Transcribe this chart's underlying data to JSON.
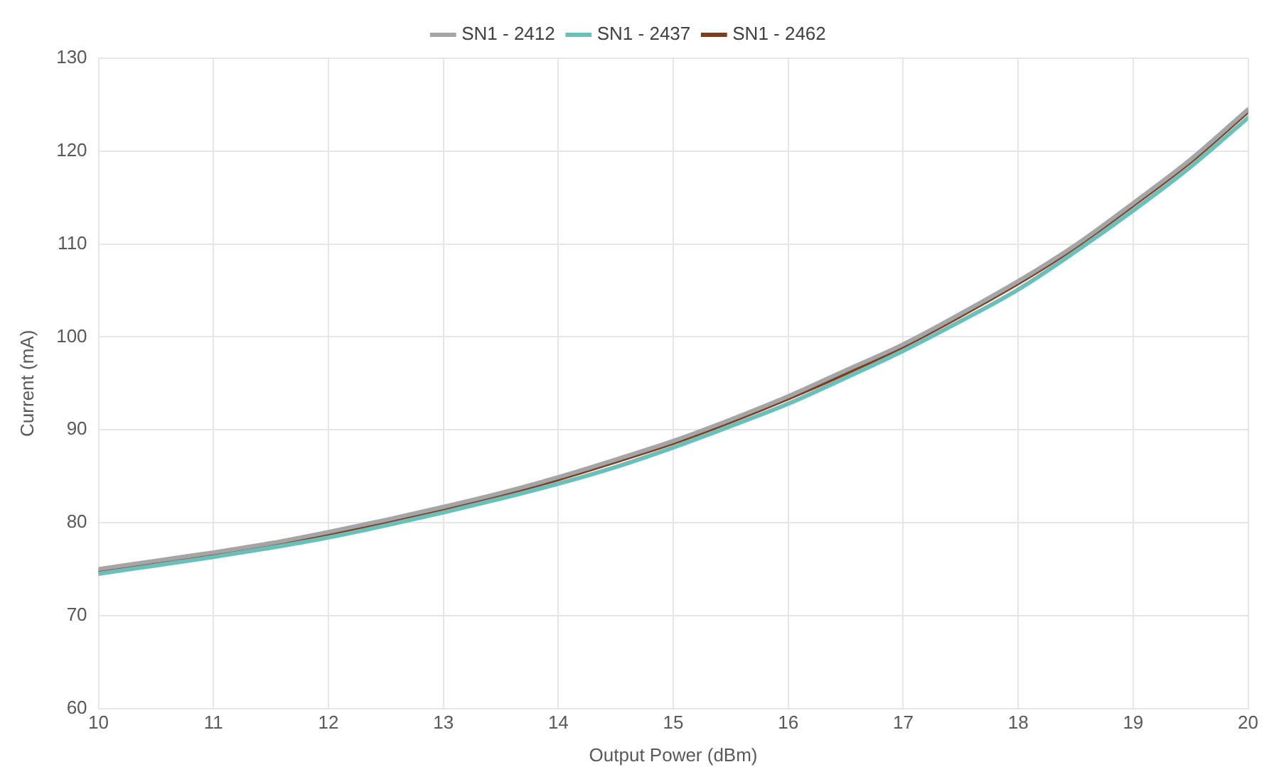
{
  "chart_data": {
    "type": "line",
    "xlabel": "Output Power (dBm)",
    "ylabel": "Current (mA)",
    "x": [
      10,
      10.5,
      11,
      11.5,
      12,
      12.5,
      13,
      13.5,
      14,
      14.5,
      15,
      15.5,
      16,
      16.5,
      17,
      17.5,
      18,
      18.5,
      19,
      19.5,
      20
    ],
    "series": [
      {
        "name": "SN1 - 2412",
        "color": "#a5a5a5",
        "values": [
          75.0,
          75.9,
          76.8,
          77.8,
          79.0,
          80.3,
          81.7,
          83.2,
          84.9,
          86.8,
          88.8,
          91.1,
          93.6,
          96.4,
          99.2,
          102.5,
          106.0,
          109.9,
          114.4,
          119.1,
          124.5
        ]
      },
      {
        "name": "SN1 - 2437",
        "color": "#6bbfba",
        "values": [
          74.5,
          75.4,
          76.3,
          77.3,
          78.4,
          79.7,
          81.1,
          82.6,
          84.2,
          86.0,
          88.1,
          90.4,
          92.8,
          95.6,
          98.5,
          101.7,
          105.1,
          109.2,
          113.6,
          118.3,
          123.6
        ]
      },
      {
        "name": "SN1 - 2462",
        "color": "#7b3f1d",
        "values": [
          74.8,
          75.7,
          76.6,
          77.6,
          78.8,
          80.1,
          81.5,
          83.0,
          84.7,
          86.6,
          88.6,
          90.9,
          93.4,
          96.1,
          99.0,
          102.3,
          105.8,
          109.7,
          114.2,
          118.9,
          124.3
        ]
      }
    ],
    "xlim": [
      10,
      20
    ],
    "xticks": [
      10,
      11,
      12,
      13,
      14,
      15,
      16,
      17,
      18,
      19,
      20
    ],
    "ylim": [
      60,
      130
    ],
    "yticks": [
      60,
      70,
      80,
      90,
      100,
      110,
      120,
      130
    ],
    "grid": true,
    "legend": "top",
    "marker": "none",
    "line_style": "solid"
  }
}
